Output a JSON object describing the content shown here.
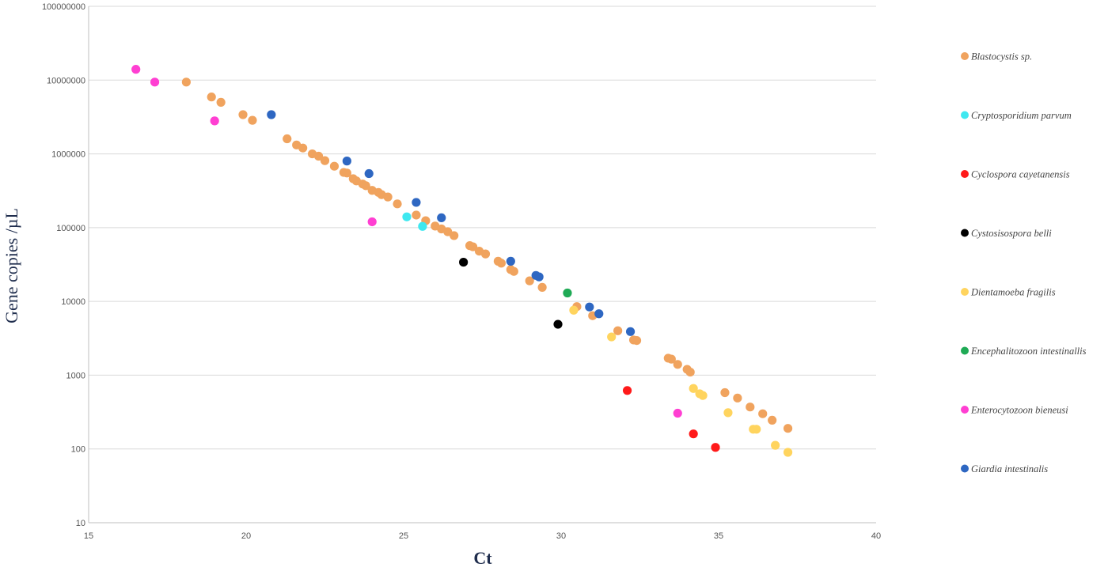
{
  "chart_data": {
    "type": "scatter",
    "title": "",
    "xlabel": "Ct",
    "ylabel": "Gene copies /µL",
    "xlim": [
      15,
      40
    ],
    "ylim": [
      10,
      100000000
    ],
    "y_scale": "log",
    "x_ticks": [
      15,
      20,
      25,
      30,
      35,
      40
    ],
    "y_ticks": [
      10,
      100,
      1000,
      10000,
      100000,
      1000000,
      10000000,
      100000000
    ],
    "y_tick_labels": [
      "10",
      "100",
      "1000",
      "10000",
      "100000",
      "1000000",
      "10000000",
      "100000000"
    ],
    "grid": "horizontal",
    "legend_position": "right",
    "series": [
      {
        "name": "Blastocystis sp.",
        "color": "#f0a35e",
        "points": [
          [
            18.1,
            9400000
          ],
          [
            18.9,
            5900000
          ],
          [
            19.2,
            5000000
          ],
          [
            19.9,
            3400000
          ],
          [
            20.2,
            2850000
          ],
          [
            21.3,
            1600000
          ],
          [
            21.6,
            1320000
          ],
          [
            21.8,
            1200000
          ],
          [
            22.1,
            1000000
          ],
          [
            22.3,
            930000
          ],
          [
            22.5,
            810000
          ],
          [
            22.8,
            680000
          ],
          [
            23.1,
            560000
          ],
          [
            23.2,
            550000
          ],
          [
            23.4,
            460000
          ],
          [
            23.5,
            430000
          ],
          [
            23.7,
            390000
          ],
          [
            23.8,
            370000
          ],
          [
            24.0,
            320000
          ],
          [
            24.2,
            300000
          ],
          [
            24.3,
            280000
          ],
          [
            24.5,
            260000
          ],
          [
            24.8,
            210000
          ],
          [
            25.4,
            148000
          ],
          [
            25.7,
            124000
          ],
          [
            26.0,
            105000
          ],
          [
            26.2,
            96000
          ],
          [
            26.4,
            88000
          ],
          [
            26.6,
            78000
          ],
          [
            27.1,
            57000
          ],
          [
            27.2,
            55000
          ],
          [
            27.4,
            48000
          ],
          [
            27.6,
            44000
          ],
          [
            28.0,
            35000
          ],
          [
            28.1,
            33000
          ],
          [
            28.4,
            27000
          ],
          [
            28.5,
            25500
          ],
          [
            29.0,
            19000
          ],
          [
            29.4,
            15500
          ],
          [
            30.5,
            8500
          ],
          [
            31.0,
            6400
          ],
          [
            31.8,
            4000
          ],
          [
            32.3,
            3000
          ],
          [
            32.4,
            2950
          ],
          [
            33.4,
            1700
          ],
          [
            33.5,
            1650
          ],
          [
            33.7,
            1400
          ],
          [
            34.0,
            1200
          ],
          [
            34.1,
            1100
          ],
          [
            35.2,
            580
          ],
          [
            35.6,
            490
          ],
          [
            36.0,
            370
          ],
          [
            36.4,
            300
          ],
          [
            36.7,
            245
          ],
          [
            37.2,
            190
          ]
        ]
      },
      {
        "name": "Cryptosporidium parvum",
        "color": "#3ee8f0",
        "points": [
          [
            25.1,
            140000
          ],
          [
            25.6,
            104000
          ]
        ]
      },
      {
        "name": "Cyclospora cayetanensis",
        "color": "#ff1a1a",
        "points": [
          [
            32.1,
            620
          ],
          [
            34.2,
            160
          ],
          [
            34.9,
            105
          ]
        ]
      },
      {
        "name": "Cystosisospora belli",
        "color": "#000000",
        "points": [
          [
            26.9,
            34000
          ],
          [
            29.9,
            4900
          ]
        ]
      },
      {
        "name": "Dientamoeba fragilis",
        "color": "#ffd45e",
        "points": [
          [
            30.4,
            7600
          ],
          [
            31.6,
            3300
          ],
          [
            34.2,
            660
          ],
          [
            34.4,
            560
          ],
          [
            34.5,
            530
          ],
          [
            35.3,
            310
          ],
          [
            36.1,
            185
          ],
          [
            36.2,
            185
          ],
          [
            36.8,
            112
          ],
          [
            37.2,
            90
          ]
        ]
      },
      {
        "name": "Encephalitozoon intestinallis",
        "color": "#1faa55",
        "points": [
          [
            30.2,
            13000
          ]
        ]
      },
      {
        "name": "Enterocytozoon bieneusi",
        "color": "#ff3fd2",
        "points": [
          [
            16.5,
            14000000
          ],
          [
            17.1,
            9400000
          ],
          [
            19.0,
            2800000
          ],
          [
            24.0,
            120000
          ],
          [
            33.7,
            305
          ]
        ]
      },
      {
        "name": "Giardia intestinalis",
        "color": "#2e67c2",
        "points": [
          [
            20.8,
            3400000
          ],
          [
            23.2,
            800000
          ],
          [
            23.9,
            540000
          ],
          [
            25.4,
            220000
          ],
          [
            26.2,
            136000
          ],
          [
            28.4,
            35000
          ],
          [
            29.2,
            22500
          ],
          [
            29.3,
            21500
          ],
          [
            30.9,
            8400
          ],
          [
            31.2,
            6800
          ],
          [
            32.2,
            3900
          ]
        ]
      }
    ]
  }
}
